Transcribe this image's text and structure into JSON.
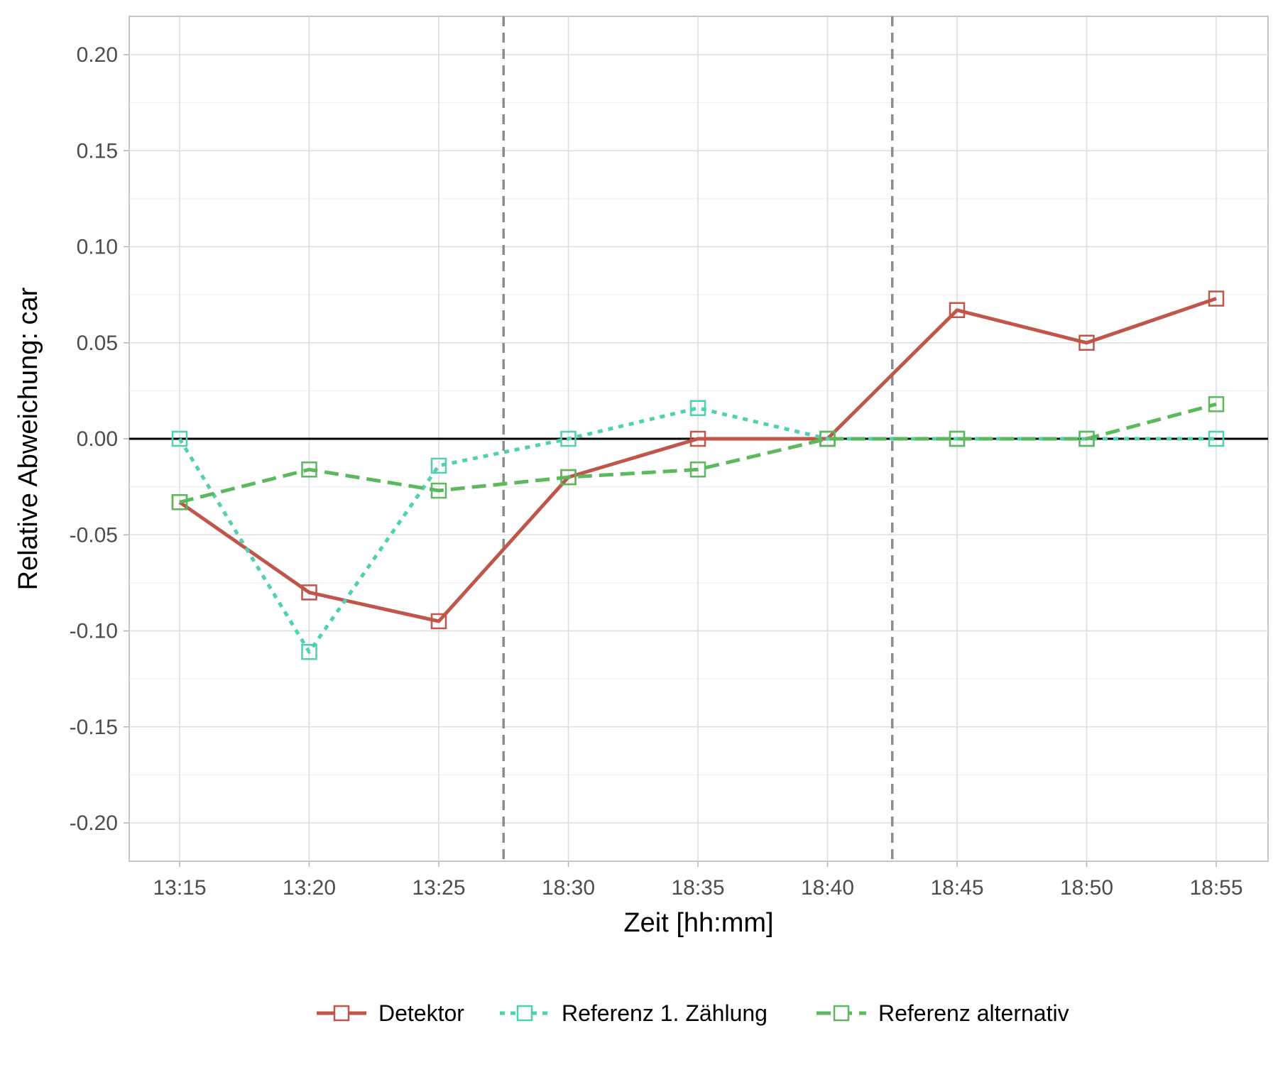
{
  "chart_data": {
    "type": "line",
    "xlabel": "Zeit [hh:mm]",
    "ylabel": "Relative Abweichung: car",
    "categories": [
      "13:15",
      "13:20",
      "13:25",
      "18:30",
      "18:35",
      "18:40",
      "18:45",
      "18:50",
      "18:55"
    ],
    "ylim": [
      -0.22,
      0.22
    ],
    "yticks": [
      0.2,
      0.15,
      0.1,
      0.05,
      0.0,
      -0.05,
      -0.1,
      -0.15,
      -0.2
    ],
    "ytick_labels": [
      "0.20",
      "0.15",
      "0.10",
      "0.05",
      "0.00",
      "-0.05",
      "-0.10",
      "-0.15",
      "-0.20"
    ],
    "reference_line_y": 0.0,
    "vertical_separators_after_category_index": [
      2.5,
      5.5
    ],
    "grid": true,
    "legend_position": "bottom",
    "series": [
      {
        "name": "Detektor",
        "color": "#c0554a",
        "dash": "solid",
        "values": [
          -0.033,
          -0.08,
          -0.095,
          -0.02,
          0.0,
          0.0,
          0.067,
          0.05,
          0.073
        ]
      },
      {
        "name": "Referenz 1. Zählung",
        "color": "#4fd0b0",
        "dash": "dotted",
        "values": [
          0.0,
          -0.111,
          -0.014,
          0.0,
          0.016,
          0.0,
          0.0,
          0.0,
          0.0
        ]
      },
      {
        "name": "Referenz alternativ",
        "color": "#5cb85c",
        "dash": "dashed",
        "values": [
          -0.033,
          -0.016,
          -0.027,
          -0.02,
          -0.016,
          0.0,
          0.0,
          0.0,
          0.018
        ]
      }
    ]
  }
}
